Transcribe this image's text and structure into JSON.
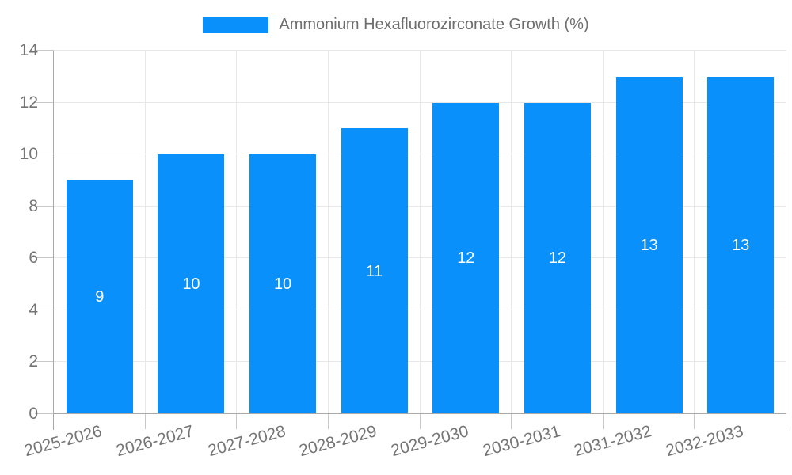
{
  "chart_data": {
    "type": "bar",
    "title": "",
    "legend": "Ammonium Hexafluorozirconate Growth (%)",
    "legend_position": "top-center",
    "categories": [
      "2025-2026",
      "2026-2027",
      "2027-2028",
      "2028-2029",
      "2029-2030",
      "2030-2031",
      "2031-2032",
      "2032-2033"
    ],
    "values": [
      9,
      10,
      10,
      11,
      12,
      12,
      13,
      13
    ],
    "value_labels": [
      "9",
      "10",
      "10",
      "11",
      "12",
      "12",
      "13",
      "13"
    ],
    "value_labels_inside": true,
    "xlabel": "",
    "ylabel": "",
    "ylim": [
      0,
      14
    ],
    "ytick_step": 2,
    "yticks": [
      "0",
      "2",
      "4",
      "6",
      "8",
      "10",
      "12",
      "14"
    ],
    "grid": true,
    "colors": {
      "bar": "#0990FA",
      "grid": "#e8e8e8",
      "axis": "#a9a9a9",
      "tick_mark": "#c9c9c9",
      "axis_text": "#757575",
      "legend_text": "#6d6d6d",
      "value_text": "#ffffff"
    }
  }
}
